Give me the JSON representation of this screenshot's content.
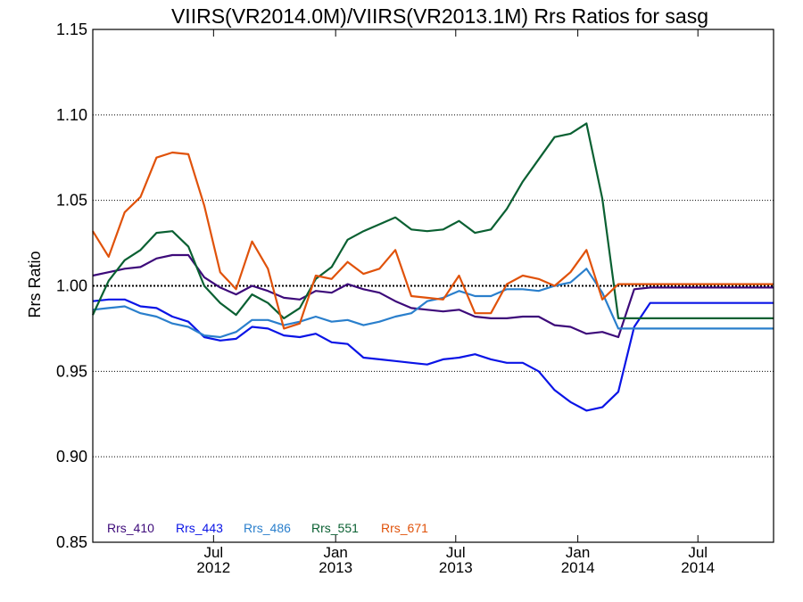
{
  "chart_data": {
    "type": "line",
    "title": "VIIRS(VR2014.0M)/VIIRS(VR2013.1M)  Rrs Ratios for sasg",
    "xlabel": "",
    "ylabel": "Rrs Ratio",
    "ylim": [
      0.85,
      1.15
    ],
    "yticks": [
      "0.85",
      "0.90",
      "0.95",
      "1.00",
      "1.05",
      "1.10",
      "1.15"
    ],
    "xlim": [
      "2012-01-01",
      "2014-10-23"
    ],
    "xticks": [
      {
        "date": "2012-07-01",
        "line1": "Jul",
        "line2": "2012"
      },
      {
        "date": "2013-01-01",
        "line1": "Jan",
        "line2": "2013"
      },
      {
        "date": "2013-07-01",
        "line1": "Jul",
        "line2": "2013"
      },
      {
        "date": "2014-01-01",
        "line1": "Jan",
        "line2": "2014"
      },
      {
        "date": "2014-07-01",
        "line1": "Jul",
        "line2": "2014"
      }
    ],
    "reference_line": 1.0,
    "legend_position": "bottom-left",
    "x": [
      "2012-01-01",
      "2012-01-25",
      "2012-02-18",
      "2012-03-13",
      "2012-04-06",
      "2012-04-30",
      "2012-05-24",
      "2012-06-17",
      "2012-07-11",
      "2012-08-04",
      "2012-08-28",
      "2012-09-21",
      "2012-10-15",
      "2012-11-08",
      "2012-12-02",
      "2012-12-26",
      "2013-01-19",
      "2013-02-12",
      "2013-03-08",
      "2013-04-01",
      "2013-04-25",
      "2013-05-19",
      "2013-06-12",
      "2013-07-06",
      "2013-07-30",
      "2013-08-23",
      "2013-09-16",
      "2013-10-10",
      "2013-11-03",
      "2013-11-27",
      "2013-12-21",
      "2014-01-14",
      "2014-02-07",
      "2014-03-03",
      "2014-03-27",
      "2014-04-20",
      "2014-05-14",
      "2014-06-07",
      "2014-07-01",
      "2014-07-25",
      "2014-08-18",
      "2014-09-11",
      "2014-10-05",
      "2014-10-23"
    ],
    "series": [
      {
        "name": "Rrs_410",
        "color": "#3d0a7a",
        "values": [
          1.006,
          1.008,
          1.01,
          1.011,
          1.016,
          1.018,
          1.018,
          1.005,
          0.999,
          0.995,
          1.0,
          0.997,
          0.993,
          0.992,
          0.997,
          0.996,
          1.001,
          0.998,
          0.996,
          0.991,
          0.987,
          0.986,
          0.985,
          0.986,
          0.982,
          0.981,
          0.981,
          0.982,
          0.982,
          0.977,
          0.976,
          0.972,
          0.973,
          0.97,
          0.998,
          0.999,
          0.999,
          0.999,
          0.999,
          0.999,
          0.999,
          0.999,
          0.999,
          0.999
        ]
      },
      {
        "name": "Rrs_443",
        "color": "#0a14e6",
        "values": [
          0.991,
          0.992,
          0.992,
          0.988,
          0.987,
          0.982,
          0.979,
          0.97,
          0.968,
          0.969,
          0.976,
          0.975,
          0.971,
          0.97,
          0.972,
          0.967,
          0.966,
          0.958,
          0.957,
          0.956,
          0.955,
          0.954,
          0.957,
          0.958,
          0.96,
          0.957,
          0.955,
          0.955,
          0.95,
          0.939,
          0.932,
          0.927,
          0.929,
          0.938,
          0.976,
          0.99,
          0.99,
          0.99,
          0.99,
          0.99,
          0.99,
          0.99,
          0.99,
          0.99
        ]
      },
      {
        "name": "Rrs_486",
        "color": "#2a7fcc",
        "values": [
          0.986,
          0.987,
          0.988,
          0.984,
          0.982,
          0.978,
          0.976,
          0.971,
          0.97,
          0.973,
          0.98,
          0.98,
          0.977,
          0.979,
          0.982,
          0.979,
          0.98,
          0.977,
          0.979,
          0.982,
          0.984,
          0.991,
          0.993,
          0.997,
          0.994,
          0.994,
          0.998,
          0.998,
          0.997,
          1.0,
          1.002,
          1.01,
          0.996,
          0.975,
          0.975,
          0.975,
          0.975,
          0.975,
          0.975,
          0.975,
          0.975,
          0.975,
          0.975,
          0.975
        ]
      },
      {
        "name": "Rrs_551",
        "color": "#0a6032",
        "values": [
          0.983,
          1.003,
          1.015,
          1.021,
          1.031,
          1.032,
          1.023,
          1.0,
          0.99,
          0.983,
          0.995,
          0.99,
          0.981,
          0.987,
          1.004,
          1.011,
          1.027,
          1.032,
          1.036,
          1.04,
          1.033,
          1.032,
          1.033,
          1.038,
          1.031,
          1.033,
          1.045,
          1.061,
          1.074,
          1.087,
          1.089,
          1.095,
          1.051,
          0.981,
          0.981,
          0.981,
          0.981,
          0.981,
          0.981,
          0.981,
          0.981,
          0.981,
          0.981,
          0.981
        ]
      },
      {
        "name": "Rrs_671",
        "color": "#e0520a",
        "values": [
          1.032,
          1.017,
          1.043,
          1.052,
          1.075,
          1.078,
          1.077,
          1.047,
          1.008,
          0.998,
          1.026,
          1.01,
          0.975,
          0.978,
          1.006,
          1.004,
          1.014,
          1.007,
          1.01,
          1.021,
          0.994,
          0.993,
          0.992,
          1.006,
          0.984,
          0.984,
          1.001,
          1.006,
          1.004,
          1.0,
          1.008,
          1.021,
          0.992,
          1.001,
          1.001,
          1.001,
          1.001,
          1.001,
          1.001,
          1.001,
          1.001,
          1.001,
          1.001,
          1.001
        ]
      }
    ]
  }
}
